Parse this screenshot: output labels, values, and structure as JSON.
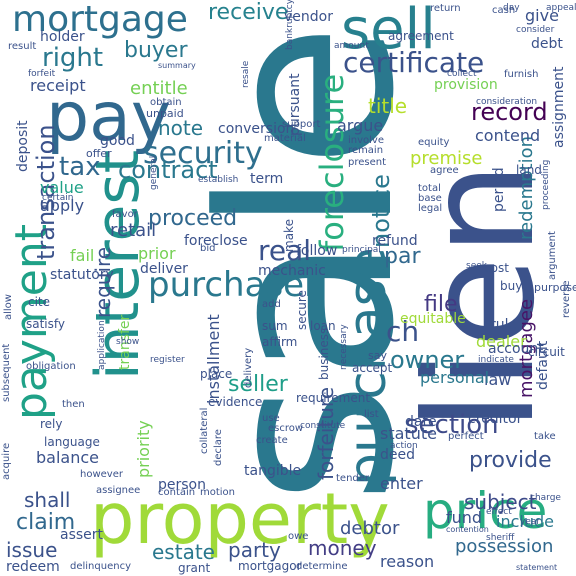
{
  "words": [
    {
      "text": "sale",
      "color": "#2a788e"
    },
    {
      "text": "lien",
      "color": "#3b528b"
    },
    {
      "text": "property",
      "color": "#a0da39"
    },
    {
      "text": "interest",
      "color": "#21918c"
    },
    {
      "text": "pay",
      "color": "#31688e"
    },
    {
      "text": "purchase",
      "color": "#2a788e"
    },
    {
      "text": "sell",
      "color": "#27808e"
    },
    {
      "text": "payment",
      "color": "#1fa187"
    },
    {
      "text": "price",
      "color": "#27ad81"
    },
    {
      "text": "mortgage",
      "color": "#2d708e"
    },
    {
      "text": "foreclosure",
      "color": "#29af7f"
    },
    {
      "text": "purchaser",
      "color": "#2a788e"
    },
    {
      "text": "security",
      "color": "#2e6f8e"
    },
    {
      "text": "certificate",
      "color": "#3b528b"
    },
    {
      "text": "section",
      "color": "#3e4a89"
    },
    {
      "text": "real",
      "color": "#3b528b"
    },
    {
      "text": "right",
      "color": "#2a788e"
    },
    {
      "text": "tax",
      "color": "#31688e"
    },
    {
      "text": "contract",
      "color": "#2a788e"
    },
    {
      "text": "notice",
      "color": "#2a788e"
    },
    {
      "text": "transaction",
      "color": "#3b528b"
    },
    {
      "text": "record",
      "color": "#440154"
    },
    {
      "text": "proceed",
      "color": "#31688e"
    },
    {
      "text": "owner",
      "color": "#2a788e"
    },
    {
      "text": "provide",
      "color": "#3b528b"
    },
    {
      "text": "file",
      "color": "#443983"
    },
    {
      "text": "seller",
      "color": "#1f9e89"
    },
    {
      "text": "subject",
      "color": "#3e4a89"
    },
    {
      "text": "possession",
      "color": "#31688e"
    },
    {
      "text": "mortgagee",
      "color": "#481467"
    },
    {
      "text": "forfeiture",
      "color": "#3b528b"
    },
    {
      "text": "redemption",
      "color": "#2a788e"
    },
    {
      "text": "receive",
      "color": "#26828e"
    },
    {
      "text": "buyer",
      "color": "#2a788e"
    },
    {
      "text": "title",
      "color": "#b5de2b"
    },
    {
      "text": "entitle",
      "color": "#75d054"
    },
    {
      "text": "note",
      "color": "#2a788e"
    },
    {
      "text": "date",
      "color": "#3b528b"
    },
    {
      "text": "require",
      "color": "#3b528b"
    },
    {
      "text": "money",
      "color": "#433e85"
    },
    {
      "text": "party",
      "color": "#3b528b"
    },
    {
      "text": "estate",
      "color": "#2a788e"
    },
    {
      "text": "issue",
      "color": "#3b528b"
    },
    {
      "text": "claim",
      "color": "#31688e"
    },
    {
      "text": "shall",
      "color": "#3b528b"
    },
    {
      "text": "priority",
      "color": "#75d054"
    },
    {
      "text": "installment",
      "color": "#3b528b"
    },
    {
      "text": "ch",
      "color": "#3b528b"
    },
    {
      "text": "par",
      "color": "#31688e"
    },
    {
      "text": "retail",
      "color": "#3b528b"
    },
    {
      "text": "deliver",
      "color": "#3b528b"
    },
    {
      "text": "mechanic",
      "color": "#3b528b"
    },
    {
      "text": "creditor",
      "color": "#3b528b"
    },
    {
      "text": "debtor",
      "color": "#3b528b"
    },
    {
      "text": "reason",
      "color": "#3b528b"
    },
    {
      "text": "statute",
      "color": "#3b528b"
    },
    {
      "text": "deed",
      "color": "#3b528b"
    },
    {
      "text": "enter",
      "color": "#3b528b"
    },
    {
      "text": "fund",
      "color": "#3b528b"
    },
    {
      "text": "include",
      "color": "#2a788e"
    },
    {
      "text": "law",
      "color": "#3b528b"
    },
    {
      "text": "dealer",
      "color": "#a0da39"
    },
    {
      "text": "personal",
      "color": "#2a788e"
    },
    {
      "text": "argue",
      "color": "#3b528b"
    },
    {
      "text": "premise",
      "color": "#b5de2b"
    },
    {
      "text": "contend",
      "color": "#3b528b"
    },
    {
      "text": "refund",
      "color": "#3b528b"
    },
    {
      "text": "balance",
      "color": "#3b528b"
    },
    {
      "text": "person",
      "color": "#3b528b"
    },
    {
      "text": "redeem",
      "color": "#3b528b"
    },
    {
      "text": "fail",
      "color": "#75d054"
    },
    {
      "text": "prior",
      "color": "#75d054"
    },
    {
      "text": "value",
      "color": "#1fa187"
    },
    {
      "text": "apply",
      "color": "#3b528b"
    },
    {
      "text": "deposit",
      "color": "#3b528b"
    },
    {
      "text": "receipt",
      "color": "#3b528b"
    },
    {
      "text": "holder",
      "color": "#3b528b"
    },
    {
      "text": "vendor",
      "color": "#3b528b"
    },
    {
      "text": "give",
      "color": "#3b528b"
    },
    {
      "text": "debt",
      "color": "#3b528b"
    },
    {
      "text": "provision",
      "color": "#75d054"
    },
    {
      "text": "assignment",
      "color": "#3b528b"
    },
    {
      "text": "pursuant",
      "color": "#3b528b"
    },
    {
      "text": "foreclose",
      "color": "#3b528b"
    },
    {
      "text": "default",
      "color": "#3b528b"
    },
    {
      "text": "period",
      "color": "#3b528b"
    },
    {
      "text": "equitable",
      "color": "#a0da39"
    },
    {
      "text": "agreement",
      "color": "#3b528b"
    },
    {
      "text": "make",
      "color": "#3b528b"
    },
    {
      "text": "follow",
      "color": "#3b528b"
    },
    {
      "text": "good",
      "color": "#3b528b"
    },
    {
      "text": "statutory",
      "color": "#3b528b"
    },
    {
      "text": "conversion",
      "color": "#3b528b"
    },
    {
      "text": "term",
      "color": "#3b528b"
    },
    {
      "text": "cost",
      "color": "#3b528b"
    },
    {
      "text": "rule",
      "color": "#3b528b"
    },
    {
      "text": "buy",
      "color": "#3b528b"
    },
    {
      "text": "assert",
      "color": "#3b528b"
    },
    {
      "text": "transfer",
      "color": "#75d054"
    },
    {
      "text": "tangible",
      "color": "#3b528b"
    },
    {
      "text": "mortgagor",
      "color": "#3b528b"
    },
    {
      "text": "grant",
      "color": "#3b528b"
    },
    {
      "text": "sum",
      "color": "#3b528b"
    },
    {
      "text": "add",
      "color": "#3b528b"
    },
    {
      "text": "affirm",
      "color": "#3b528b"
    },
    {
      "text": "secure",
      "color": "#3b528b"
    },
    {
      "text": "loan",
      "color": "#3b528b"
    },
    {
      "text": "business",
      "color": "#3b528b"
    },
    {
      "text": "necessary",
      "color": "#3b528b"
    },
    {
      "text": "requirement",
      "color": "#3b528b"
    },
    {
      "text": "accept",
      "color": "#3b528b"
    },
    {
      "text": "say",
      "color": "#3b528b"
    },
    {
      "text": "circuit",
      "color": "#3b528b"
    },
    {
      "text": "account",
      "color": "#3b528b"
    },
    {
      "text": "land",
      "color": "#3b528b"
    },
    {
      "text": "evidence",
      "color": "#3b528b"
    },
    {
      "text": "place",
      "color": "#3b528b"
    },
    {
      "text": "delivery",
      "color": "#3b528b"
    },
    {
      "text": "purpose",
      "color": "#3b528b"
    },
    {
      "text": "reverse",
      "color": "#3b528b"
    },
    {
      "text": "argument",
      "color": "#3b528b"
    },
    {
      "text": "offer",
      "color": "#3b528b"
    },
    {
      "text": "material",
      "color": "#3b528b"
    },
    {
      "text": "support",
      "color": "#3b528b"
    },
    {
      "text": "involve",
      "color": "#3b528b"
    },
    {
      "text": "remain",
      "color": "#3b528b"
    },
    {
      "text": "present",
      "color": "#3b528b"
    },
    {
      "text": "agree",
      "color": "#3b528b"
    },
    {
      "text": "equity",
      "color": "#3b528b"
    },
    {
      "text": "total",
      "color": "#3b528b"
    },
    {
      "text": "base",
      "color": "#3b528b"
    },
    {
      "text": "legal",
      "color": "#3b528b"
    },
    {
      "text": "consideration",
      "color": "#3b528b"
    },
    {
      "text": "proceeding",
      "color": "#3b528b"
    },
    {
      "text": "return",
      "color": "#3b528b"
    },
    {
      "text": "cash",
      "color": "#3b528b"
    },
    {
      "text": "day",
      "color": "#3b528b"
    },
    {
      "text": "appeal",
      "color": "#3b528b"
    },
    {
      "text": "consider",
      "color": "#3b528b"
    },
    {
      "text": "collect",
      "color": "#3b528b"
    },
    {
      "text": "furnish",
      "color": "#3b528b"
    },
    {
      "text": "amount",
      "color": "#3b528b"
    },
    {
      "text": "bankruptcy",
      "color": "#3b528b"
    },
    {
      "text": "unpaid",
      "color": "#3b528b"
    },
    {
      "text": "obtain",
      "color": "#3b528b"
    },
    {
      "text": "summary",
      "color": "#3b528b"
    },
    {
      "text": "result",
      "color": "#3b528b"
    },
    {
      "text": "forfeit",
      "color": "#3b528b"
    },
    {
      "text": "certain",
      "color": "#3b528b"
    },
    {
      "text": "establish",
      "color": "#3b528b"
    },
    {
      "text": "general",
      "color": "#3b528b"
    },
    {
      "text": "favor",
      "color": "#3b528b"
    },
    {
      "text": "bid",
      "color": "#3b528b"
    },
    {
      "text": "cite",
      "color": "#3b528b"
    },
    {
      "text": "satisfy",
      "color": "#3b528b"
    },
    {
      "text": "allow",
      "color": "#3b528b"
    },
    {
      "text": "obligation",
      "color": "#3b528b"
    },
    {
      "text": "application",
      "color": "#3b528b"
    },
    {
      "text": "register",
      "color": "#3b528b"
    },
    {
      "text": "show",
      "color": "#3b528b"
    },
    {
      "text": "rely",
      "color": "#3b528b"
    },
    {
      "text": "language",
      "color": "#3b528b"
    },
    {
      "text": "then",
      "color": "#3b528b"
    },
    {
      "text": "acquire",
      "color": "#3b528b"
    },
    {
      "text": "subsequent",
      "color": "#3b528b"
    },
    {
      "text": "however",
      "color": "#3b528b"
    },
    {
      "text": "assignee",
      "color": "#3b528b"
    },
    {
      "text": "contain",
      "color": "#3b528b"
    },
    {
      "text": "motion",
      "color": "#3b528b"
    },
    {
      "text": "delinquency",
      "color": "#3b528b"
    },
    {
      "text": "determine",
      "color": "#3b528b"
    },
    {
      "text": "owe",
      "color": "#3b528b"
    },
    {
      "text": "collateral",
      "color": "#3b528b"
    },
    {
      "text": "declare",
      "color": "#3b528b"
    },
    {
      "text": "escrow",
      "color": "#3b528b"
    },
    {
      "text": "create",
      "color": "#3b528b"
    },
    {
      "text": "use",
      "color": "#3b528b"
    },
    {
      "text": "tender",
      "color": "#3b528b"
    },
    {
      "text": "constitute",
      "color": "#3b528b"
    },
    {
      "text": "list",
      "color": "#3b528b"
    },
    {
      "text": "perfect",
      "color": "#3b528b"
    },
    {
      "text": "take",
      "color": "#3b528b"
    },
    {
      "text": "indicate",
      "color": "#3b528b"
    },
    {
      "text": "seek",
      "color": "#3b528b"
    },
    {
      "text": "principal",
      "color": "#3b528b"
    },
    {
      "text": "sheriff",
      "color": "#3b528b"
    },
    {
      "text": "effect",
      "color": "#3b528b"
    },
    {
      "text": "year",
      "color": "#3b528b"
    },
    {
      "text": "contention",
      "color": "#3b528b"
    },
    {
      "text": "statement",
      "color": "#3b528b"
    },
    {
      "text": "charge",
      "color": "#3b528b"
    },
    {
      "text": "action",
      "color": "#3b528b"
    },
    {
      "text": "resale",
      "color": "#3b528b"
    }
  ]
}
